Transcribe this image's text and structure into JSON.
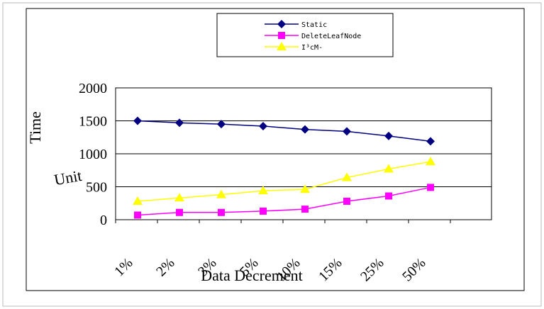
{
  "chart_data": {
    "type": "line",
    "categories": [
      "1%",
      "2%",
      "3%",
      "5%",
      "10%",
      "15%",
      "25%",
      "50%"
    ],
    "series": [
      {
        "name": "Static",
        "color": "#000080",
        "marker": "diamond",
        "values": [
          1500,
          1470,
          1450,
          1420,
          1370,
          1340,
          1270,
          1190
        ]
      },
      {
        "name": "DeleteLeafNode",
        "color": "#ff00ff",
        "marker": "square",
        "values": [
          70,
          110,
          110,
          130,
          160,
          280,
          360,
          490
        ]
      },
      {
        "name": "I³cM-",
        "color": "#ffff00",
        "marker": "triangle",
        "values": [
          280,
          330,
          380,
          440,
          460,
          640,
          770,
          880
        ]
      }
    ],
    "ylim": [
      0,
      2000
    ],
    "yticks": [
      "0",
      "500",
      "1000",
      "1500",
      "2000"
    ],
    "ylabel_part1": "Time",
    "ylabel_part2": "Unit",
    "xlabel": "Data Decrement",
    "grid": "horizontal",
    "legend_position": "top"
  }
}
